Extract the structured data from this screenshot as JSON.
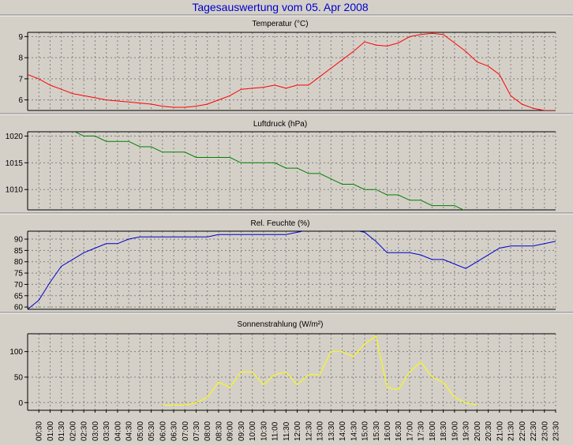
{
  "title": "Tagesauswertung vom 05. Apr 2008",
  "time_labels": [
    "00:30",
    "01:00",
    "01:30",
    "02:00",
    "02:30",
    "03:00",
    "03:30",
    "04:00",
    "04:30",
    "05:00",
    "05:30",
    "06:00",
    "06:30",
    "07:00",
    "07:30",
    "08:00",
    "08:30",
    "09:00",
    "09:30",
    "10:00",
    "10:30",
    "11:00",
    "11:30",
    "12:00",
    "12:30",
    "13:00",
    "13:30",
    "14:00",
    "14:30",
    "15:00",
    "15:30",
    "16:00",
    "16:30",
    "17:00",
    "17:30",
    "18:00",
    "18:30",
    "19:00",
    "19:30",
    "20:00",
    "20:30",
    "21:00",
    "21:30",
    "22:00",
    "22:30",
    "23:00",
    "23:30"
  ],
  "colors": {
    "background": "#d4d0c8",
    "plot_background": "#d4d0c8",
    "title": "#0000cc",
    "temperature": "#ff0000",
    "pressure": "#008000",
    "humidity": "#0000cc",
    "radiation": "#ffff00",
    "grid": "#808080"
  },
  "chart_data": [
    {
      "type": "line",
      "title": "Temperatur (°C)",
      "xlabel": "",
      "ylabel": "",
      "x_range": [
        0,
        23.5
      ],
      "ylim": [
        5.5,
        9.2
      ],
      "yticks": [
        6,
        7,
        8,
        9
      ],
      "grid": true,
      "series": [
        {
          "color": "#ff0000",
          "x": [
            0,
            0.5,
            1,
            1.5,
            2,
            2.5,
            3,
            3.5,
            4,
            4.5,
            5,
            5.5,
            6,
            6.5,
            7,
            7.5,
            8,
            8.5,
            9,
            9.5,
            10,
            10.5,
            11,
            11.5,
            12,
            12.5,
            13,
            13.5,
            14,
            14.5,
            15,
            15.5,
            16,
            16.5,
            17,
            17.5,
            18,
            18.5,
            19,
            19.5,
            20,
            20.5,
            21,
            21.5,
            22,
            22.5,
            23,
            23.5
          ],
          "y": [
            7.2,
            7.0,
            6.7,
            6.5,
            6.3,
            6.2,
            6.1,
            6.0,
            5.95,
            5.9,
            5.85,
            5.8,
            5.7,
            5.65,
            5.65,
            5.7,
            5.8,
            6.0,
            6.2,
            6.5,
            6.55,
            6.6,
            6.7,
            6.55,
            6.7,
            6.7,
            7.1,
            7.5,
            7.9,
            8.3,
            8.75,
            8.6,
            8.55,
            8.7,
            9.0,
            9.1,
            9.15,
            9.1,
            8.7,
            8.3,
            7.8,
            7.6,
            7.2,
            6.2,
            5.8,
            5.6,
            5.5,
            5.5
          ]
        }
      ]
    },
    {
      "type": "line",
      "title": "Luftdruck (hPa)",
      "xlabel": "",
      "ylabel": "",
      "x_range": [
        0,
        23.5
      ],
      "ylim": [
        1006.2,
        1020.8
      ],
      "yticks": [
        1010,
        1015,
        1020
      ],
      "grid": true,
      "series": [
        {
          "color": "#008000",
          "x": [
            2,
            2.5,
            3,
            3.5,
            4,
            4.5,
            5,
            5.5,
            6,
            6.5,
            7,
            7.5,
            8,
            8.5,
            9,
            9.5,
            10,
            10.5,
            11,
            11.5,
            12,
            12.5,
            13,
            13.5,
            14,
            14.5,
            15,
            15.5,
            16,
            16.5,
            17,
            17.5,
            18,
            18.5,
            19,
            19.5
          ],
          "y": [
            1021,
            1020,
            1020,
            1019,
            1019,
            1019,
            1018,
            1018,
            1017,
            1017,
            1017,
            1016,
            1016,
            1016,
            1016,
            1015,
            1015,
            1015,
            1015,
            1014,
            1014,
            1013,
            1013,
            1012,
            1011,
            1011,
            1010,
            1010,
            1009,
            1009,
            1008,
            1008,
            1007,
            1007,
            1007,
            1006
          ]
        }
      ]
    },
    {
      "type": "line",
      "title": "Rel. Feuchte (%)",
      "xlabel": "",
      "ylabel": "",
      "x_range": [
        0,
        23.5
      ],
      "ylim": [
        59,
        93.5
      ],
      "yticks": [
        60,
        65,
        70,
        75,
        80,
        85,
        90
      ],
      "grid": true,
      "series": [
        {
          "color": "#0000cc",
          "x": [
            0,
            0.5,
            1,
            1.5,
            2,
            2.5,
            3,
            3.5,
            4,
            4.5,
            5,
            5.5,
            6,
            6.5,
            7,
            7.5,
            8,
            8.5,
            9,
            9.5,
            10,
            10.5,
            11,
            11.5,
            12,
            12.5,
            13,
            13.5,
            14,
            14.5,
            15,
            15.5,
            16,
            16.5,
            17,
            17.5,
            18,
            18.5,
            19,
            19.5,
            20,
            20.5,
            21,
            21.5,
            22,
            22.5,
            23,
            23.5
          ],
          "y": [
            59,
            63,
            71,
            78,
            81,
            84,
            86,
            88,
            88,
            90,
            91,
            91,
            91,
            91,
            91,
            91,
            91,
            92,
            92,
            92,
            92,
            92,
            92,
            92,
            93,
            94,
            94,
            94,
            94,
            94,
            93,
            89,
            84,
            84,
            84,
            83,
            81,
            81,
            79,
            77,
            80,
            83,
            86,
            87,
            87,
            87,
            88,
            89
          ]
        }
      ]
    },
    {
      "type": "line",
      "title": "Sonnenstrahlung (W/m²)",
      "xlabel": "",
      "ylabel": "",
      "x_range": [
        0,
        23.5
      ],
      "ylim": [
        -15,
        135
      ],
      "yticks": [
        0,
        50,
        100
      ],
      "grid": true,
      "series": [
        {
          "color": "#ffff00",
          "x": [
            6,
            6.5,
            7,
            7.5,
            8,
            8.5,
            9,
            9.5,
            10,
            10.5,
            11,
            11.5,
            12,
            12.5,
            13,
            13.5,
            14,
            14.5,
            15,
            15.5,
            16,
            16.5,
            17,
            17.5,
            18,
            18.5,
            19,
            19.5,
            20
          ],
          "y": [
            -5,
            -5,
            -5,
            0,
            10,
            40,
            30,
            60,
            60,
            35,
            55,
            60,
            35,
            55,
            55,
            100,
            100,
            90,
            115,
            130,
            30,
            25,
            60,
            80,
            50,
            40,
            10,
            0,
            -5
          ]
        }
      ]
    }
  ]
}
